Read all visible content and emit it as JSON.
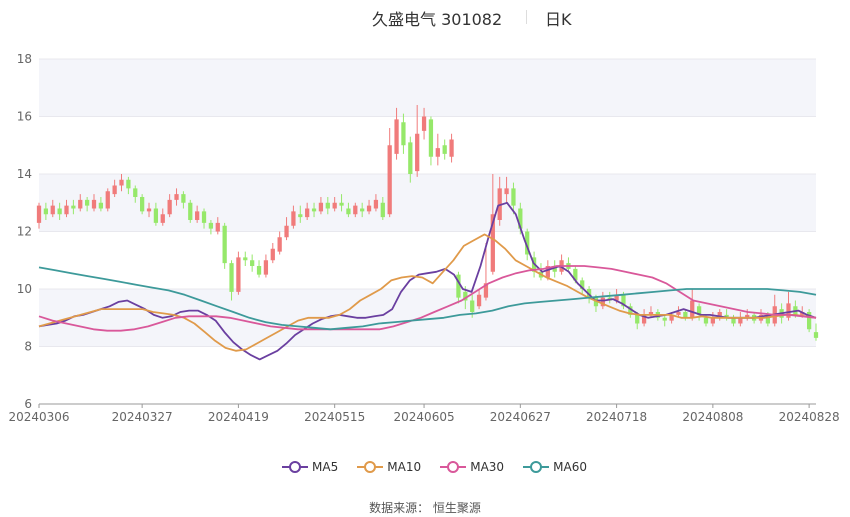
{
  "header": {
    "title": "久盛电气 301082",
    "period": "日K"
  },
  "footer": {
    "source_label": "数据来源：",
    "source_name": "恒生聚源"
  },
  "legend": [
    {
      "name": "MA5",
      "color": "#6a3fa0"
    },
    {
      "name": "MA10",
      "color": "#e09a4a"
    },
    {
      "name": "MA30",
      "color": "#d9589a"
    },
    {
      "name": "MA60",
      "color": "#3d9a9a"
    }
  ],
  "colors": {
    "up": "#f07b7b",
    "down": "#96e86a",
    "band": "#f4f5fa",
    "grid": "#e8e8ee",
    "axis_text": "#666666"
  },
  "chart_data": {
    "type": "candlestick",
    "title": "久盛电气 301082",
    "ylim": [
      6,
      18
    ],
    "y_ticks": [
      6,
      8,
      10,
      12,
      14,
      16,
      18
    ],
    "x_tick_labels": [
      "20240306",
      "20240327",
      "20240419",
      "20240515",
      "20240605",
      "20240627",
      "20240718",
      "20240808",
      "20240828"
    ],
    "x_tick_index": [
      0,
      15,
      29,
      43,
      56,
      70,
      84,
      98,
      112
    ],
    "candles": [
      [
        12.3,
        12.9,
        13.0,
        12.1
      ],
      [
        12.8,
        12.6,
        13.0,
        12.4
      ],
      [
        12.6,
        12.9,
        13.1,
        12.5
      ],
      [
        12.8,
        12.6,
        13.0,
        12.4
      ],
      [
        12.6,
        12.9,
        13.1,
        12.5
      ],
      [
        12.9,
        12.8,
        13.1,
        12.6
      ],
      [
        12.8,
        13.1,
        13.3,
        12.7
      ],
      [
        13.1,
        12.9,
        13.2,
        12.7
      ],
      [
        12.8,
        13.1,
        13.3,
        12.7
      ],
      [
        13.0,
        12.8,
        13.2,
        12.7
      ],
      [
        12.8,
        13.4,
        13.5,
        12.7
      ],
      [
        13.3,
        13.6,
        13.8,
        13.2
      ],
      [
        13.6,
        13.8,
        14.0,
        13.4
      ],
      [
        13.8,
        13.5,
        13.9,
        13.3
      ],
      [
        13.5,
        13.2,
        13.6,
        13.0
      ],
      [
        13.2,
        12.7,
        13.3,
        12.6
      ],
      [
        12.7,
        12.8,
        13.0,
        12.5
      ],
      [
        12.8,
        12.3,
        13.0,
        12.2
      ],
      [
        12.3,
        12.6,
        12.8,
        12.2
      ],
      [
        12.6,
        13.1,
        13.3,
        12.5
      ],
      [
        13.1,
        13.3,
        13.5,
        12.9
      ],
      [
        13.3,
        13.0,
        13.4,
        12.8
      ],
      [
        13.0,
        12.4,
        13.1,
        12.3
      ],
      [
        12.4,
        12.7,
        12.9,
        12.3
      ],
      [
        12.7,
        12.3,
        12.8,
        12.1
      ],
      [
        12.3,
        12.1,
        12.4,
        11.9
      ],
      [
        12.0,
        12.3,
        12.5,
        11.9
      ],
      [
        12.2,
        10.9,
        12.3,
        10.7
      ],
      [
        10.9,
        9.9,
        11.0,
        9.6
      ],
      [
        9.9,
        11.1,
        11.3,
        9.8
      ],
      [
        11.1,
        11.0,
        11.3,
        10.8
      ],
      [
        11.0,
        10.8,
        11.2,
        10.6
      ],
      [
        10.8,
        10.5,
        11.0,
        10.4
      ],
      [
        10.5,
        11.0,
        11.2,
        10.4
      ],
      [
        11.0,
        11.4,
        11.6,
        10.9
      ],
      [
        11.3,
        11.8,
        12.0,
        11.2
      ],
      [
        11.8,
        12.2,
        12.5,
        11.7
      ],
      [
        12.2,
        12.7,
        12.9,
        12.1
      ],
      [
        12.6,
        12.5,
        12.9,
        12.3
      ],
      [
        12.5,
        12.8,
        13.0,
        12.4
      ],
      [
        12.8,
        12.7,
        13.0,
        12.5
      ],
      [
        12.7,
        13.0,
        13.2,
        12.6
      ],
      [
        13.0,
        12.8,
        13.2,
        12.6
      ],
      [
        12.8,
        13.0,
        13.2,
        12.7
      ],
      [
        13.0,
        12.9,
        13.3,
        12.7
      ],
      [
        12.8,
        12.6,
        13.0,
        12.5
      ],
      [
        12.6,
        12.9,
        13.0,
        12.5
      ],
      [
        12.8,
        12.7,
        13.0,
        12.5
      ],
      [
        12.7,
        12.9,
        13.1,
        12.6
      ],
      [
        12.8,
        13.1,
        13.3,
        12.7
      ],
      [
        13.0,
        12.5,
        13.2,
        12.4
      ],
      [
        12.6,
        15.0,
        15.6,
        12.5
      ],
      [
        14.7,
        15.9,
        16.3,
        14.5
      ],
      [
        15.8,
        15.0,
        16.1,
        14.7
      ],
      [
        15.1,
        14.0,
        15.3,
        13.7
      ],
      [
        14.1,
        15.4,
        16.4,
        13.9
      ],
      [
        15.5,
        16.0,
        16.3,
        15.2
      ],
      [
        15.9,
        14.6,
        16.0,
        14.3
      ],
      [
        14.6,
        14.9,
        15.4,
        14.3
      ],
      [
        15.0,
        14.7,
        15.2,
        14.5
      ]
    ],
    "candles_2": [
      [
        14.6,
        15.2,
        15.4,
        14.4
      ],
      [
        10.5,
        9.7,
        10.6,
        9.5
      ],
      [
        9.9,
        9.6,
        10.1,
        9.3
      ],
      [
        9.6,
        9.2,
        9.8,
        9.0
      ],
      [
        9.4,
        9.8,
        10.0,
        9.3
      ],
      [
        9.7,
        10.2,
        11.6,
        9.6
      ],
      [
        10.6,
        12.6,
        14.0,
        10.5
      ],
      [
        12.4,
        13.5,
        13.9,
        12.2
      ],
      [
        13.3,
        13.5,
        13.9,
        13.0
      ],
      [
        13.5,
        12.9,
        13.7,
        12.6
      ],
      [
        12.8,
        12.1,
        13.0,
        11.9
      ],
      [
        12.0,
        11.2,
        12.1,
        11.0
      ],
      [
        11.1,
        10.6,
        11.3,
        10.4
      ],
      [
        10.6,
        10.4,
        10.9,
        10.3
      ],
      [
        10.4,
        10.8,
        11.0,
        10.3
      ],
      [
        10.8,
        10.6,
        11.0,
        10.4
      ],
      [
        10.6,
        11.0,
        11.2,
        10.5
      ],
      [
        10.9,
        10.7,
        11.1,
        10.6
      ],
      [
        10.7,
        10.3,
        10.8,
        10.2
      ],
      [
        10.3,
        10.0,
        10.4,
        9.8
      ],
      [
        10.0,
        9.7,
        10.1,
        9.5
      ],
      [
        9.7,
        9.4,
        9.8,
        9.2
      ],
      [
        9.4,
        9.7,
        9.9,
        9.3
      ],
      [
        9.7,
        9.6,
        9.9,
        9.5
      ],
      [
        9.6,
        9.8,
        10.0,
        9.5
      ],
      [
        9.8,
        9.4,
        9.9,
        9.3
      ],
      [
        9.4,
        9.1,
        9.5,
        9.0
      ],
      [
        9.1,
        8.8,
        9.2,
        8.6
      ],
      [
        8.8,
        9.1,
        9.3,
        8.7
      ],
      [
        9.1,
        9.2,
        9.4,
        9.0
      ],
      [
        9.2,
        9.0,
        9.3,
        8.9
      ],
      [
        9.0,
        8.9,
        9.1,
        8.7
      ],
      [
        8.9,
        9.1,
        9.2,
        8.8
      ],
      [
        9.1,
        9.2,
        9.4,
        9.0
      ],
      [
        9.2,
        9.0,
        9.3,
        8.9
      ],
      [
        9.0,
        9.6,
        10.0,
        8.9
      ],
      [
        9.4,
        9.1,
        9.5,
        8.9
      ],
      [
        9.0,
        8.8,
        9.1,
        8.7
      ],
      [
        8.8,
        9.0,
        9.2,
        8.7
      ],
      [
        9.0,
        9.2,
        9.3,
        8.9
      ],
      [
        9.1,
        9.0,
        9.3,
        8.9
      ],
      [
        9.0,
        8.8,
        9.1,
        8.7
      ],
      [
        8.8,
        9.0,
        9.2,
        8.7
      ],
      [
        9.0,
        9.1,
        9.3,
        8.9
      ],
      [
        9.1,
        8.9,
        9.2,
        8.8
      ],
      [
        8.9,
        9.1,
        9.3,
        8.8
      ],
      [
        9.1,
        8.8,
        9.2,
        8.7
      ],
      [
        8.8,
        9.4,
        9.8,
        8.7
      ],
      [
        9.3,
        9.0,
        9.5,
        8.8
      ],
      [
        9.0,
        9.5,
        9.9,
        8.9
      ],
      [
        9.4,
        9.1,
        9.6,
        9.0
      ],
      [
        9.1,
        9.2,
        9.4,
        9.0
      ],
      [
        9.2,
        8.6,
        9.3,
        8.5
      ],
      [
        8.5,
        8.3,
        8.8,
        8.2
      ]
    ],
    "series": [
      {
        "name": "MA5",
        "values": [
          8.7,
          8.75,
          8.8,
          8.9,
          9.05,
          9.1,
          9.2,
          9.3,
          9.4,
          9.55,
          9.6,
          9.45,
          9.3,
          9.1,
          9.0,
          9.05,
          9.2,
          9.25,
          9.25,
          9.1,
          8.9,
          8.5,
          8.15,
          7.9,
          7.7,
          7.55,
          7.7,
          7.85,
          8.1,
          8.4,
          8.6,
          8.8,
          8.95,
          9.05,
          9.1,
          9.05,
          9.0,
          9.0,
          9.05,
          9.1,
          9.3,
          9.9,
          10.3,
          10.5,
          10.55,
          10.6,
          10.7,
          10.5,
          10.0,
          9.9,
          10.8,
          11.9,
          12.9,
          13.0,
          12.6,
          11.7,
          10.9,
          10.6,
          10.7,
          10.8,
          10.6,
          10.2,
          9.9,
          9.6,
          9.6,
          9.65,
          9.5,
          9.3,
          9.1,
          9.0,
          9.05,
          9.1,
          9.2,
          9.3,
          9.2,
          9.1,
          9.1,
          9.05,
          9.0,
          9.0,
          9.0,
          9.0,
          9.05,
          9.1,
          9.15,
          9.2,
          9.25,
          9.1,
          9.0
        ]
      },
      {
        "name": "MA10",
        "values": [
          8.7,
          8.8,
          8.9,
          9.0,
          9.1,
          9.2,
          9.3,
          9.3,
          9.3,
          9.3,
          9.3,
          9.2,
          9.15,
          9.1,
          9.0,
          8.8,
          8.5,
          8.2,
          7.95,
          7.85,
          7.9,
          8.1,
          8.3,
          8.5,
          8.7,
          8.9,
          9.0,
          9.0,
          9.0,
          9.1,
          9.3,
          9.6,
          9.8,
          10.0,
          10.3,
          10.4,
          10.45,
          10.4,
          10.2,
          10.6,
          11.0,
          11.5,
          11.7,
          11.9,
          11.7,
          11.4,
          11.0,
          10.8,
          10.6,
          10.4,
          10.25,
          10.1,
          9.9,
          9.7,
          9.55,
          9.4,
          9.25,
          9.15,
          9.1,
          9.1,
          9.1,
          9.1,
          9.0,
          9.0,
          9.05,
          9.0,
          9.0,
          9.0,
          9.0,
          9.0,
          9.0,
          9.05,
          9.1,
          9.1,
          9.05,
          9.0
        ]
      },
      {
        "name": "MA30",
        "values": [
          9.05,
          8.9,
          8.8,
          8.7,
          8.6,
          8.55,
          8.55,
          8.6,
          8.7,
          8.85,
          9.0,
          9.05,
          9.05,
          9.05,
          9.0,
          8.9,
          8.8,
          8.7,
          8.65,
          8.6,
          8.6,
          8.6,
          8.6,
          8.6,
          8.6,
          8.6,
          8.7,
          8.85,
          9.0,
          9.2,
          9.4,
          9.6,
          9.9,
          10.2,
          10.4,
          10.55,
          10.65,
          10.7,
          10.8,
          10.8,
          10.8,
          10.75,
          10.7,
          10.6,
          10.5,
          10.4,
          10.2,
          9.9,
          9.6,
          9.5,
          9.4,
          9.3,
          9.2,
          9.15,
          9.1,
          9.1,
          9.05,
          9.0
        ]
      },
      {
        "name": "MA60",
        "values": [
          10.75,
          10.65,
          10.55,
          10.45,
          10.35,
          10.25,
          10.15,
          10.05,
          9.95,
          9.8,
          9.6,
          9.4,
          9.2,
          9.0,
          8.85,
          8.75,
          8.7,
          8.65,
          8.6,
          8.65,
          8.7,
          8.8,
          8.85,
          8.9,
          8.95,
          9.0,
          9.1,
          9.15,
          9.25,
          9.4,
          9.5,
          9.55,
          9.6,
          9.65,
          9.7,
          9.75,
          9.8,
          9.85,
          9.9,
          9.95,
          10.0,
          10.0,
          10.0,
          10.0,
          10.0,
          10.0,
          9.95,
          9.9,
          9.8
        ]
      }
    ]
  }
}
